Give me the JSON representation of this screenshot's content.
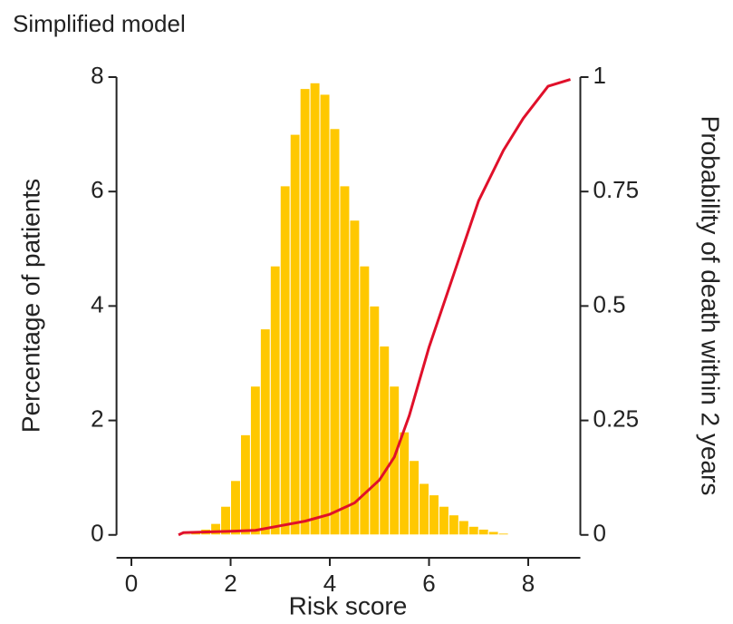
{
  "chart_data": {
    "type": "histogram",
    "title": "Simplified model",
    "xlabel": "Risk score",
    "ylabel": "Percentage of patients",
    "y2label": "Probability of death within 2 years",
    "bins": [
      1.0,
      1.2,
      1.4,
      1.6,
      1.8,
      2.0,
      2.2,
      2.4,
      2.6,
      2.8,
      3.0,
      3.2,
      3.4,
      3.6,
      3.8,
      4.0,
      4.2,
      4.4,
      4.6,
      4.8,
      5.0,
      5.2,
      5.4,
      5.6,
      5.8,
      6.0,
      6.2,
      6.4,
      6.6,
      6.8,
      7.0,
      7.2,
      7.4,
      7.6
    ],
    "values": [
      0.02,
      0.05,
      0.1,
      0.2,
      0.5,
      0.95,
      1.75,
      2.6,
      3.6,
      4.7,
      6.1,
      7.0,
      7.8,
      7.9,
      7.7,
      7.1,
      6.1,
      5.5,
      4.7,
      4.0,
      3.3,
      2.6,
      1.8,
      1.3,
      0.9,
      0.7,
      0.5,
      0.35,
      0.25,
      0.15,
      0.1,
      0.06,
      0.03
    ],
    "color": "#ffc800",
    "series": [
      {
        "type": "line",
        "color": "#e0102a",
        "axis": "y2",
        "x": [
          0.95,
          1.05,
          2,
          2.5,
          3,
          3.5,
          4,
          4.5,
          5,
          5.3,
          5.6,
          6,
          6.5,
          7,
          7.5,
          7.9,
          8.4,
          8.85
        ],
        "values": [
          0,
          0.005,
          0.008,
          0.01,
          0.02,
          0.03,
          0.045,
          0.07,
          0.12,
          0.17,
          0.26,
          0.41,
          0.57,
          0.73,
          0.84,
          0.91,
          0.98,
          0.995
        ]
      }
    ],
    "xlim": [
      -0.3,
      9.05
    ],
    "ylim": [
      -0.4,
      8
    ],
    "y2lim": [
      -0.05,
      1
    ],
    "xticks": [
      0,
      2,
      4,
      6,
      8
    ],
    "yticks": [
      0,
      2,
      4,
      6,
      8
    ],
    "y2ticks": [
      0,
      0.25,
      0.5,
      0.75,
      1
    ]
  }
}
